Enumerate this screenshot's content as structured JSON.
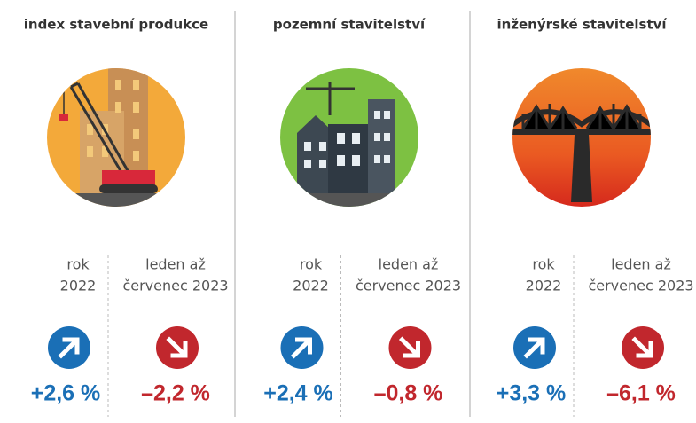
{
  "panels": [
    {
      "title": "index stavební produkce",
      "items": [
        {
          "label": [
            "rok",
            "2022"
          ],
          "trend": "up",
          "value": "+2,6 %"
        },
        {
          "label": [
            "leden až",
            "červenec 2023"
          ],
          "trend": "down",
          "value": "–2,2 %"
        }
      ]
    },
    {
      "title": "pozemní stavitelství",
      "items": [
        {
          "label": [
            "rok",
            "2022"
          ],
          "trend": "up",
          "value": "+2,4 %"
        },
        {
          "label": [
            "leden až",
            "červenec 2023"
          ],
          "trend": "down",
          "value": "–0,8 %"
        }
      ]
    },
    {
      "title": "inženýrské stavitelství",
      "items": [
        {
          "label": [
            "rok",
            "2022"
          ],
          "trend": "up",
          "value": "+3,3 %"
        },
        {
          "label": [
            "leden až",
            "červenec 2023"
          ],
          "trend": "down",
          "value": "–6,1 %"
        }
      ]
    }
  ]
}
